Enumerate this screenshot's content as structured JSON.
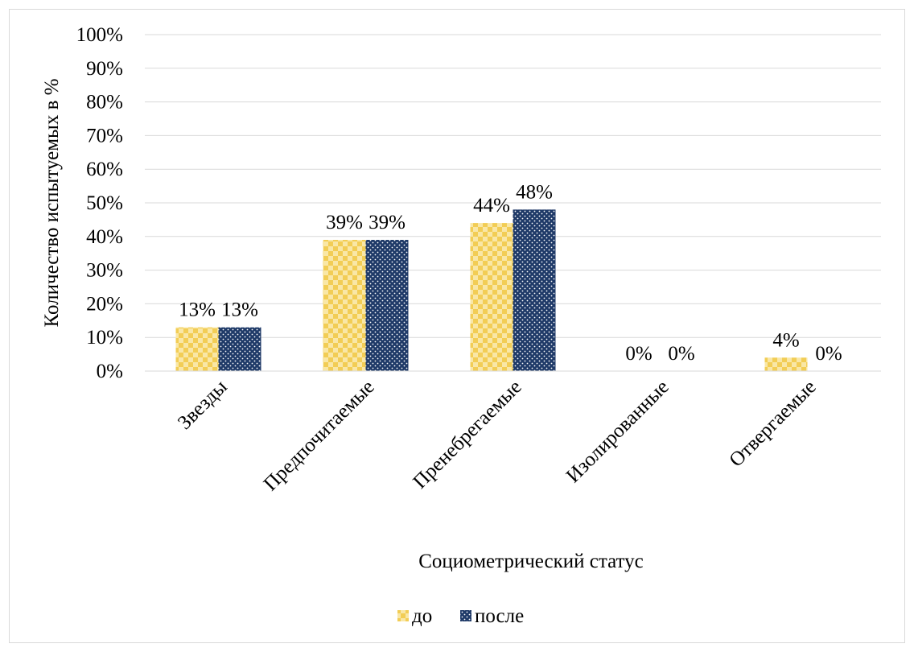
{
  "chart_data": {
    "type": "bar",
    "title": "",
    "xlabel": "Социометрический статус",
    "ylabel": "Количество испытуемых в %",
    "ylim": [
      0,
      100
    ],
    "y_ticks": [
      0,
      10,
      20,
      30,
      40,
      50,
      60,
      70,
      80,
      90,
      100
    ],
    "y_tick_labels": [
      "0%",
      "10%",
      "20%",
      "30%",
      "40%",
      "50%",
      "60%",
      "70%",
      "80%",
      "90%",
      "100%"
    ],
    "categories": [
      "Звезды",
      "Предпочитаемые",
      "Пренебрегаемые",
      "Изолированные",
      "Отвергаемые"
    ],
    "series": [
      {
        "name": "до",
        "values": [
          13,
          39,
          44,
          0,
          4
        ],
        "labels": [
          "13%",
          "39%",
          "44%",
          "0%",
          "4%"
        ],
        "color": "#f5d76e"
      },
      {
        "name": "после",
        "values": [
          13,
          39,
          48,
          0,
          0
        ],
        "labels": [
          "13%",
          "39%",
          "48%",
          "0%",
          "0%"
        ],
        "color": "#1f3a68"
      }
    ],
    "grid": true,
    "legend": "bottom"
  }
}
